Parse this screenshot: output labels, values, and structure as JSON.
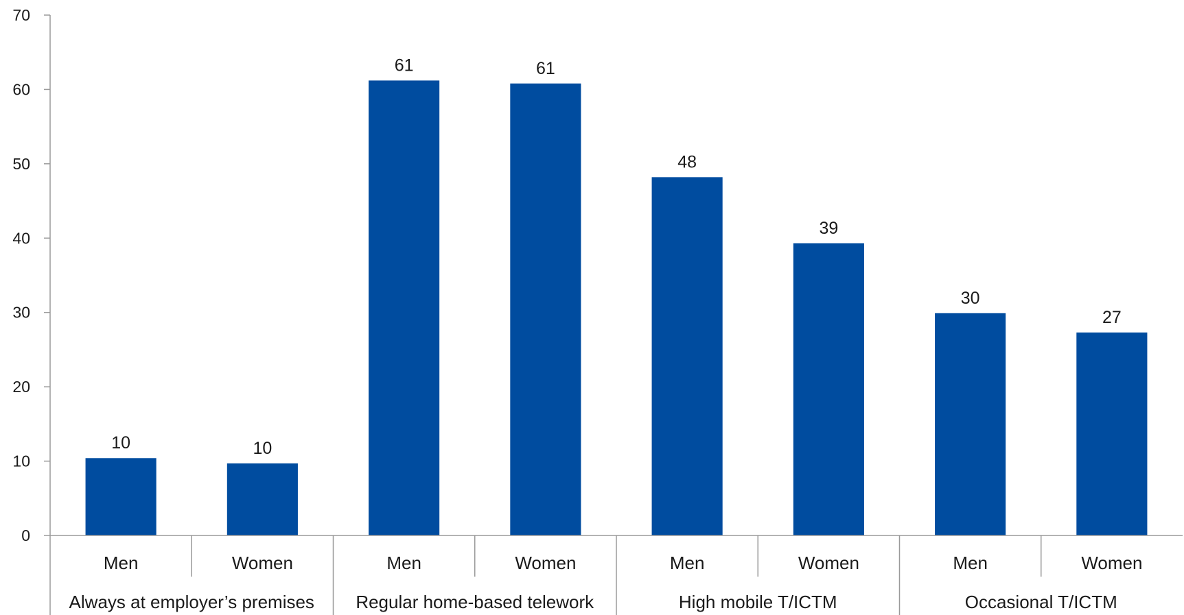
{
  "chart_data": {
    "type": "bar",
    "ylim": [
      0,
      70
    ],
    "yticks": [
      0,
      10,
      20,
      30,
      40,
      50,
      60,
      70
    ],
    "grid": false,
    "bar_color": "#004C9F",
    "groups": [
      {
        "label": "Always at employer’s premises",
        "categories": [
          "Men",
          "Women"
        ]
      },
      {
        "label": "Regular home-based telework",
        "categories": [
          "Men",
          "Women"
        ]
      },
      {
        "label": "High mobile T/ICTM",
        "categories": [
          "Men",
          "Women"
        ]
      },
      {
        "label": "Occasional T/ICTM",
        "categories": [
          "Men",
          "Women"
        ]
      }
    ],
    "values": [
      10.4,
      9.7,
      61.2,
      60.8,
      48.2,
      39.3,
      29.9,
      27.3
    ],
    "value_labels": [
      "10",
      "10",
      "61",
      "61",
      "48",
      "39",
      "30",
      "27"
    ]
  }
}
